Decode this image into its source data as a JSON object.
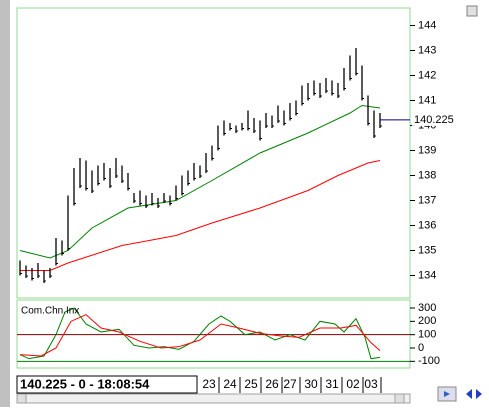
{
  "chart_data": [
    {
      "type": "ohlc",
      "high": [
        134.6,
        134.4,
        134.3,
        134.5,
        134.2,
        134.3,
        135.5,
        135.4,
        137.2,
        138.3,
        138.7,
        138.6,
        138.2,
        138.4,
        138.5,
        138.3,
        138.7,
        138.4,
        138.1,
        137.3,
        137.4,
        137.2,
        137.3,
        137.1,
        137.3,
        137.2,
        137.6,
        138.0,
        138.2,
        138.5,
        138.4,
        138.9,
        139.2,
        140.0,
        140.2,
        140.1,
        140.0,
        140.1,
        140.6,
        140.3,
        140.2,
        140.5,
        140.4,
        140.8,
        140.6,
        140.9,
        141.0,
        141.6,
        141.7,
        141.8,
        141.7,
        141.9,
        141.8,
        141.7,
        142.3,
        142.8,
        143.1,
        142.4,
        141.2,
        140.6,
        140.5
      ],
      "low": [
        134.0,
        133.9,
        133.8,
        133.9,
        133.7,
        133.9,
        134.4,
        134.8,
        135.0,
        136.8,
        137.5,
        137.4,
        137.3,
        137.6,
        137.8,
        137.5,
        137.9,
        137.7,
        137.4,
        136.9,
        136.8,
        136.7,
        136.8,
        136.7,
        136.9,
        136.8,
        137.0,
        137.2,
        137.6,
        137.8,
        137.9,
        138.1,
        138.6,
        139.0,
        139.6,
        139.8,
        139.7,
        139.8,
        139.8,
        139.7,
        139.4,
        139.9,
        139.9,
        140.1,
        140.0,
        140.2,
        140.4,
        140.8,
        141.0,
        141.2,
        141.1,
        141.3,
        141.2,
        141.1,
        141.4,
        141.8,
        142.0,
        141.0,
        140.0,
        139.5,
        139.9
      ],
      "bar_color": "#000000",
      "overlays": [
        {
          "color": "#008000",
          "x": [
            0,
            5,
            8,
            12,
            18,
            26,
            32,
            40,
            48,
            55,
            57,
            60
          ],
          "values": [
            135.0,
            134.7,
            135.0,
            135.9,
            136.7,
            137.0,
            137.8,
            138.9,
            139.7,
            140.5,
            140.8,
            140.7
          ]
        },
        {
          "color": "#ff0000",
          "x": [
            0,
            5,
            8,
            17,
            26,
            32,
            40,
            48,
            53,
            58,
            60
          ],
          "values": [
            134.2,
            134.2,
            134.5,
            135.2,
            135.6,
            136.1,
            136.7,
            137.4,
            138.0,
            138.5,
            138.6
          ]
        }
      ],
      "last_price": 140.225,
      "last_price_color": "#000080",
      "xlim": [
        -0.5,
        65
      ],
      "xticks": [
        {
          "value": 31.5,
          "label": "23"
        },
        {
          "value": 35,
          "label": "24"
        },
        {
          "value": 38.5,
          "label": "25"
        },
        {
          "value": 42,
          "label": "26"
        },
        {
          "value": 45,
          "label": "27"
        },
        {
          "value": 48.5,
          "label": "30"
        },
        {
          "value": 52,
          "label": "31"
        },
        {
          "value": 55.5,
          "label": "02"
        },
        {
          "value": 58.5,
          "label": "03"
        }
      ],
      "ylim": [
        133.1,
        144.7
      ],
      "yticks": [
        134,
        135,
        136,
        137,
        138,
        139,
        140,
        141,
        142,
        143,
        144
      ]
    },
    {
      "type": "line",
      "title": "Com.Chn.Inx",
      "xlim": [
        -0.5,
        65
      ],
      "ylim": [
        -150,
        360
      ],
      "yticks": [
        -100,
        0,
        100,
        200,
        300
      ],
      "levels": [
        {
          "value": 100,
          "color": "#800000"
        },
        {
          "value": -100,
          "color": "#008000"
        }
      ],
      "series": [
        {
          "color": "#008000",
          "x": [
            0,
            1.5,
            4,
            6,
            7.5,
            9,
            11,
            13.5,
            16.5,
            19,
            21.5,
            24,
            26.5,
            29,
            31.5,
            33.5,
            35,
            37.5,
            40,
            42.5,
            45,
            47.5,
            50,
            52.5,
            54,
            56,
            57.5,
            58.5,
            60
          ],
          "values": [
            -50,
            -80,
            -60,
            100,
            270,
            300,
            180,
            120,
            140,
            20,
            0,
            10,
            -10,
            50,
            180,
            240,
            200,
            100,
            120,
            60,
            100,
            60,
            200,
            180,
            120,
            220,
            80,
            -80,
            -70
          ]
        },
        {
          "color": "#ff0000",
          "x": [
            0,
            3.5,
            6,
            8.5,
            11,
            13.5,
            16.5,
            20,
            23.5,
            26.5,
            30,
            33.5,
            36.5,
            40,
            43.5,
            46.5,
            50,
            53.5,
            56,
            58.5,
            60
          ],
          "values": [
            -50,
            -60,
            0,
            200,
            250,
            150,
            120,
            50,
            0,
            10,
            60,
            180,
            150,
            110,
            90,
            80,
            150,
            150,
            170,
            40,
            -20
          ]
        }
      ]
    }
  ],
  "status_text": "140.225 - 0 - 18:08:54"
}
